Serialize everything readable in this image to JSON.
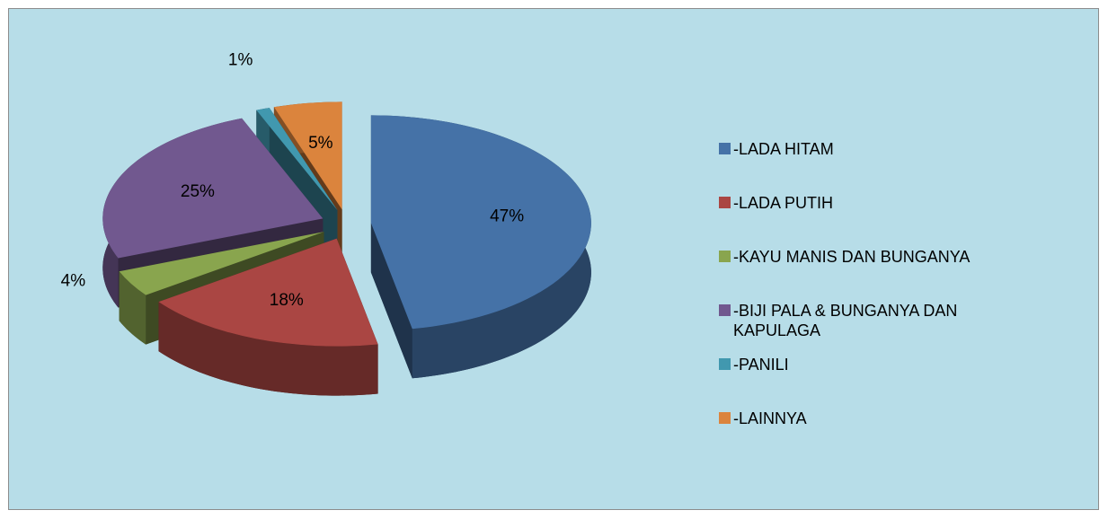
{
  "chart_data": {
    "type": "pie",
    "categories": [
      "-LADA HITAM",
      "-LADA PUTIH",
      "-KAYU MANIS DAN BUNGANYA",
      "-BIJI PALA & BUNGANYA DAN KAPULAGA",
      "-PANILI",
      "-LAINNYA"
    ],
    "values": [
      47,
      18,
      4,
      25,
      1,
      5
    ],
    "value_labels": [
      "47%",
      "18%",
      "4%",
      "25%",
      "1%",
      "5%"
    ],
    "colors": [
      "#4572a7",
      "#aa4643",
      "#89a54e",
      "#71588f",
      "#4198af",
      "#db843d"
    ],
    "legend": "right"
  }
}
